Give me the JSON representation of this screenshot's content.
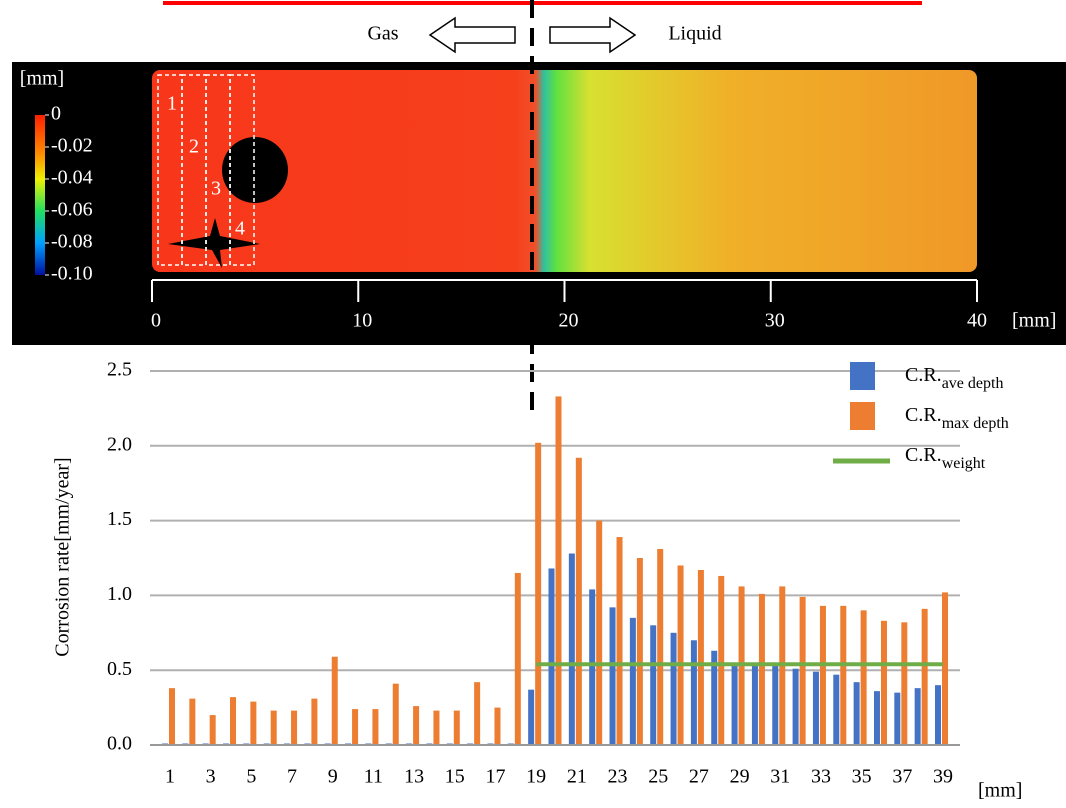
{
  "chart_data": [
    {
      "type": "heatmap",
      "annotations": [
        "Gas",
        "Liquid"
      ],
      "regions": [
        "1",
        "2",
        "3",
        "4"
      ],
      "xlim": [
        0,
        40
      ],
      "xticks": [
        0,
        10,
        20,
        30,
        40
      ],
      "x_label": "[mm]",
      "colorbar": {
        "label": "[mm]",
        "lim": [
          -0.1,
          0
        ],
        "ticks": [
          0,
          -0.02,
          -0.04,
          -0.06,
          -0.08,
          {
            "value": -0.1,
            "label": "-0.10"
          }
        ]
      }
    },
    {
      "type": "bar",
      "y_label": "Corrosion rate[mm/year]",
      "x_label": "[mm]",
      "categories": [
        "1",
        null,
        "3",
        null,
        "5",
        null,
        "7",
        null,
        "9",
        null,
        "11",
        null,
        "13",
        null,
        "15",
        null,
        "17",
        null,
        "19",
        null,
        "21",
        null,
        "23",
        null,
        "25",
        null,
        "27",
        null,
        "29",
        null,
        "31",
        null,
        "33",
        null,
        "35",
        null,
        "37",
        null,
        "39"
      ],
      "ylim": [
        0,
        2.5
      ],
      "yticks": [
        {
          "value": 0,
          "label": "0.0"
        },
        0.5,
        {
          "value": 1,
          "label": "1.0"
        },
        1.5,
        {
          "value": 2,
          "label": "2.0"
        },
        2.5
      ],
      "grid": true,
      "series": [
        {
          "name": "C.R.",
          "name_subscript": "ave depth",
          "color": "#4472c4",
          "values": [
            0.01,
            0.01,
            0.01,
            0.01,
            0.01,
            0.01,
            0.01,
            0.01,
            0.01,
            0.01,
            0.01,
            0.01,
            0.01,
            0.01,
            0.01,
            0.01,
            0.01,
            0.01,
            0.37,
            1.18,
            1.28,
            1.04,
            0.92,
            0.85,
            0.8,
            0.75,
            0.7,
            0.63,
            0.55,
            0.55,
            0.53,
            0.51,
            0.49,
            0.47,
            0.42,
            0.36,
            0.35,
            0.38,
            0.4
          ]
        },
        {
          "name": "C.R.",
          "name_subscript": "max depth",
          "color": "#ed7d31",
          "values": [
            0.38,
            0.31,
            0.2,
            0.32,
            0.29,
            0.23,
            0.23,
            0.31,
            0.59,
            0.24,
            0.24,
            0.41,
            0.26,
            0.23,
            0.23,
            0.42,
            0.25,
            1.15,
            2.02,
            2.33,
            1.92,
            1.5,
            1.39,
            1.25,
            1.31,
            1.2,
            1.17,
            1.13,
            1.06,
            1.01,
            1.06,
            0.99,
            0.93,
            0.93,
            0.9,
            0.83,
            0.82,
            0.91,
            1.02
          ]
        },
        {
          "name": "C.R.",
          "name_subscript": "weight",
          "color": "#70ad47",
          "type": "line",
          "values": [
            null,
            null,
            null,
            null,
            null,
            null,
            null,
            null,
            null,
            null,
            null,
            null,
            null,
            null,
            null,
            null,
            null,
            null,
            0.54,
            0.54,
            0.54,
            0.54,
            0.54,
            0.54,
            0.54,
            0.54,
            0.54,
            0.54,
            0.54,
            0.54,
            0.54,
            0.54,
            0.54,
            0.54,
            0.54,
            0.54,
            0.54,
            0.54,
            0.54
          ]
        }
      ]
    }
  ]
}
